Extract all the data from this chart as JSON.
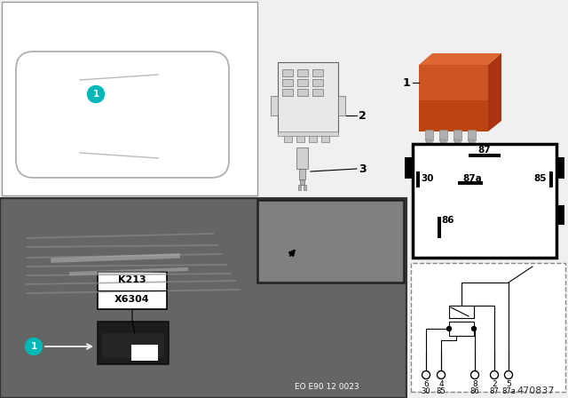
{
  "bg_color": "#f0f0f0",
  "white": "#ffffff",
  "black": "#000000",
  "teal_color": "#00b8b8",
  "relay_orange": "#cc5522",
  "relay_orange_dark": "#aa3300",
  "photo_dark": "#5a5a5a",
  "photo_mid": "#6e6e6e",
  "gray_line": "#aaaaaa",
  "doc_ref": "EO E90 12 0023",
  "part_number": "470837",
  "k213": "K213",
  "x6304": "X6304",
  "circuit_nums": [
    "6",
    "4",
    "8",
    "2",
    "5"
  ],
  "circuit_lbls": [
    "30",
    "85",
    "86",
    "87",
    "87a"
  ],
  "pin87": "87",
  "pin30": "30",
  "pin87a": "87a",
  "pin85": "85",
  "pin86": "86",
  "item1": "1",
  "item2": "2",
  "item3": "3"
}
